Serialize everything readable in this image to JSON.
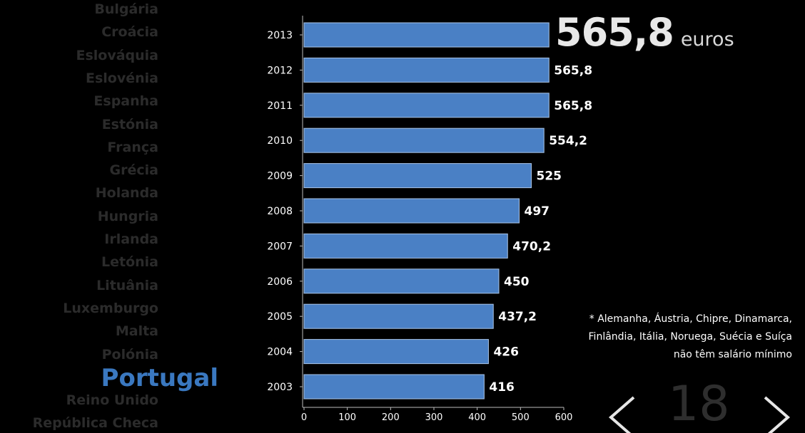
{
  "countries": [
    "Bulgária",
    "Croácia",
    "Eslováquia",
    "Eslovénia",
    "Espanha",
    "Estónia",
    "França",
    "Grécia",
    "Holanda",
    "Hungria",
    "Irlanda",
    "Letónia",
    "Lituânia",
    "Luxemburgo",
    "Malta",
    "Polónia",
    "Portugal",
    "Reino Unido",
    "República Checa"
  ],
  "selected_country": "Portugal",
  "headline": {
    "value": "565,8",
    "unit": "euros"
  },
  "footnote": {
    "line1": "* Alemanha, Áustria, Chipre, Dinamarca,",
    "line2": "Finlândia, Itália, Noruega, Suécia e Suíça",
    "line3": "não têm salário mínimo"
  },
  "pager": {
    "page": "18"
  },
  "colors": {
    "bar": "#4a80c5",
    "selected": "#3a78c0",
    "muted": "#2b2b2b"
  },
  "chart_data": {
    "type": "bar",
    "orientation": "horizontal",
    "categories": [
      "2013",
      "2012",
      "2011",
      "2010",
      "2009",
      "2008",
      "2007",
      "2006",
      "2005",
      "2004",
      "2003"
    ],
    "values": [
      565.8,
      565.8,
      565.8,
      554.2,
      525,
      497,
      470.2,
      450,
      437.2,
      426,
      416
    ],
    "value_labels": [
      "",
      "565,8",
      "565,8",
      "554,2",
      "525",
      "497",
      "470,2",
      "450",
      "437,2",
      "426",
      "416"
    ],
    "xlim": [
      0,
      600
    ],
    "xticks": [
      0,
      100,
      200,
      300,
      400,
      500,
      600
    ],
    "grid": false
  }
}
